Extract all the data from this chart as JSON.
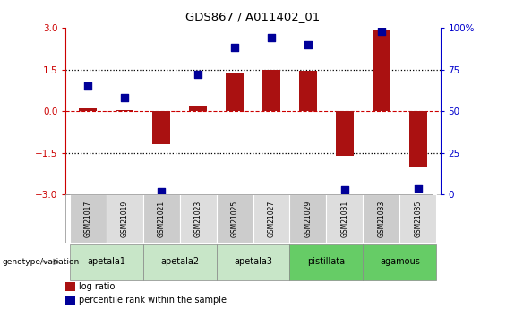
{
  "title": "GDS867 / A011402_01",
  "samples": [
    "GSM21017",
    "GSM21019",
    "GSM21021",
    "GSM21023",
    "GSM21025",
    "GSM21027",
    "GSM21029",
    "GSM21031",
    "GSM21033",
    "GSM21035"
  ],
  "log_ratio": [
    0.1,
    0.05,
    -1.2,
    0.2,
    1.35,
    1.5,
    1.45,
    -1.6,
    2.95,
    -2.0
  ],
  "percentile_rank": [
    65,
    58,
    2,
    72,
    88,
    94,
    90,
    3,
    98,
    4
  ],
  "groups": [
    {
      "label": "apetala1",
      "samples": [
        0,
        1
      ],
      "color": "#c8e6c8"
    },
    {
      "label": "apetala2",
      "samples": [
        2,
        3
      ],
      "color": "#c8e6c8"
    },
    {
      "label": "apetala3",
      "samples": [
        4,
        5
      ],
      "color": "#c8e6c8"
    },
    {
      "label": "pistillata",
      "samples": [
        6,
        7
      ],
      "color": "#66cc66"
    },
    {
      "label": "agamous",
      "samples": [
        8,
        9
      ],
      "color": "#66cc66"
    }
  ],
  "ylim_left": [
    -3,
    3
  ],
  "ylim_right": [
    0,
    100
  ],
  "yticks_left": [
    -3,
    -1.5,
    0,
    1.5,
    3
  ],
  "yticks_right": [
    0,
    25,
    50,
    75,
    100
  ],
  "bar_color": "#aa1111",
  "dot_color": "#000099",
  "hline_color": "#cc0000",
  "dotted_line_color": "black",
  "left_axis_color": "#cc0000",
  "right_axis_color": "#0000cc",
  "legend_bar_label": "log ratio",
  "legend_dot_label": "percentile rank within the sample",
  "genotype_label": "genotype/variation",
  "background_color": "#ffffff",
  "sample_box_color": "#cccccc",
  "sample_box_alt_color": "#dddddd"
}
